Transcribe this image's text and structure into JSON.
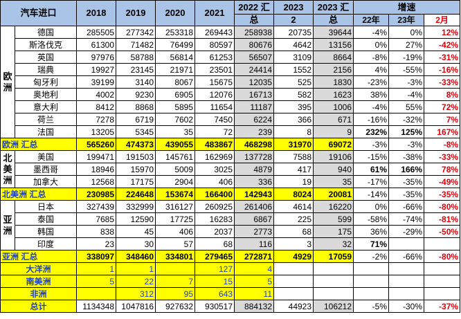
{
  "headers": {
    "title": "汽车进口",
    "years": [
      "2018",
      "2019",
      "2020",
      "2021"
    ],
    "total_2022_a": "2022 汇",
    "total_2022_b": "总",
    "y2023_a": "2023",
    "y2023_b": "2",
    "total_2023_a": "2023 汇",
    "total_2023_b": "总",
    "growth": "增速",
    "g22": "22年",
    "g23": "23年",
    "feb": "2月"
  },
  "regions": {
    "europe": "欧洲",
    "north_america": "北美洲",
    "asia": "亚洲"
  },
  "europe": [
    {
      "name": "德国",
      "v": [
        "285505",
        "277342",
        "253318",
        "269443",
        "258938",
        "20735",
        "39644"
      ],
      "g": [
        "-4%",
        "0%",
        "12%"
      ]
    },
    {
      "name": "斯洛伐克",
      "v": [
        "61300",
        "71482",
        "76499",
        "80597",
        "80676",
        "4642",
        "13156"
      ],
      "g": [
        "0%",
        "27%",
        "-42%"
      ]
    },
    {
      "name": "英国",
      "v": [
        "97976",
        "58788",
        "56814",
        "61253",
        "56507",
        "3109",
        "8664"
      ],
      "g": [
        "-8%",
        "-19%",
        "-31%"
      ]
    },
    {
      "name": "瑞典",
      "v": [
        "19927",
        "23145",
        "21971",
        "23501",
        "24414",
        "1552",
        "2156"
      ],
      "g": [
        "4%",
        "-55%",
        "-16%"
      ]
    },
    {
      "name": "匈牙利",
      "v": [
        "39199",
        "3140",
        "8067",
        "15675",
        "12035",
        "525",
        "1830"
      ],
      "g": [
        "-23%",
        "-3%",
        "-33%"
      ]
    },
    {
      "name": "奥地利",
      "v": [
        "4002",
        "9230",
        "6905",
        "12076",
        "16713",
        "582",
        "1623"
      ],
      "g": [
        "38%",
        "-4%",
        "8%"
      ]
    },
    {
      "name": "意大利",
      "v": [
        "8412",
        "8868",
        "5895",
        "11654",
        "11187",
        "395",
        "1006"
      ],
      "g": [
        "-4%",
        "55%",
        "72%"
      ]
    },
    {
      "name": "荷兰",
      "v": [
        "7278",
        "6719",
        "7602",
        "7450",
        "6224",
        "366",
        "671"
      ],
      "g": [
        "-16%",
        "-32%",
        "7%"
      ]
    },
    {
      "name": "法国",
      "v": [
        "13205",
        "5345",
        "35",
        "72",
        "239",
        "8",
        "9"
      ],
      "g": [
        "232%",
        "125%",
        "167%"
      ]
    }
  ],
  "europe_total": {
    "label": "欧洲 汇总",
    "v": [
      "565260",
      "474373",
      "439055",
      "483867",
      "468298",
      "31970",
      "69072"
    ],
    "g": [
      "-3%",
      "-3%",
      "-8%"
    ]
  },
  "north_america": [
    {
      "name": "美国",
      "v": [
        "199471",
        "191503",
        "145761",
        "162969",
        "137728",
        "7588",
        "19106"
      ],
      "g": [
        "-15%",
        "-38%",
        "-33%"
      ]
    },
    {
      "name": "墨西哥",
      "v": [
        "18946",
        "15970",
        "5009",
        "3025",
        "4879",
        "417",
        "940"
      ],
      "g": [
        "61%",
        "166%",
        "78%"
      ]
    },
    {
      "name": "加拿大",
      "v": [
        "12568",
        "17175",
        "2904",
        "406",
        "336",
        "19",
        "35"
      ],
      "g": [
        "-17%",
        "-35%",
        "-49%"
      ]
    }
  ],
  "north_america_total": {
    "label": "北美洲 汇总",
    "v": [
      "230985",
      "224648",
      "153674",
      "166400",
      "142943",
      "8024",
      "20081"
    ],
    "g": [
      "-14%",
      "-35%",
      "-35%"
    ]
  },
  "asia": [
    {
      "name": "日本",
      "v": [
        "327439",
        "332999",
        "316127",
        "260925",
        "261406",
        "4614",
        "16220"
      ],
      "g": [
        "0%",
        "-66%",
        "-80%"
      ]
    },
    {
      "name": "泰国",
      "v": [
        "7685",
        "12590",
        "17725",
        "16283",
        "6867",
        "225",
        "599"
      ],
      "g": [
        "-58%",
        "-74%",
        "-81%"
      ]
    },
    {
      "name": "韩国",
      "v": [
        "838",
        "45",
        "406",
        "2037",
        "2773",
        "68",
        "175"
      ],
      "g": [
        "36%",
        "-29%",
        "-50%"
      ]
    },
    {
      "name": "印度",
      "v": [
        "23",
        "30",
        "57",
        "68",
        "116",
        "3",
        "32"
      ],
      "g": [
        "71%",
        "",
        ""
      ]
    }
  ],
  "asia_total": {
    "label": "亚洲 汇总",
    "v": [
      "338097",
      "348460",
      "334801",
      "279465",
      "272871",
      "4929",
      "17059"
    ],
    "g": [
      "-2%",
      "-66%",
      "-80%"
    ]
  },
  "small_regions": [
    {
      "label": "大洋洲",
      "v": [
        "1",
        "1",
        "",
        "127",
        "4"
      ]
    },
    {
      "label": "南美洲",
      "v": [
        "5",
        "22",
        "7",
        "15",
        "5"
      ]
    },
    {
      "label": "非洲",
      "v": [
        "",
        "312",
        "95",
        "643",
        "11"
      ]
    }
  ],
  "grand_total": {
    "label": "总计",
    "v": [
      "1134348",
      "1047816",
      "927632",
      "930517",
      "884132",
      "44923",
      "106212"
    ],
    "g": [
      "-5%",
      "-30%",
      "-37%"
    ]
  }
}
